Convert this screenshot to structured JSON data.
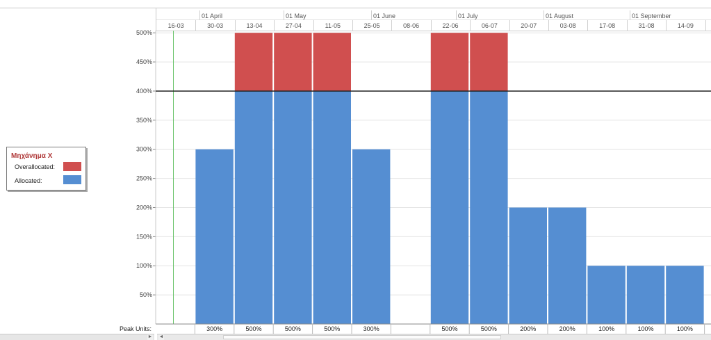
{
  "timescale": {
    "months": [
      "01 April",
      "01 May",
      "01 June",
      "01 July",
      "01 August",
      "01 September"
    ],
    "weeks": [
      "16-03",
      "30-03",
      "13-04",
      "27-04",
      "11-05",
      "25-05",
      "08-06",
      "22-06",
      "06-07",
      "20-07",
      "03-08",
      "17-08",
      "31-08",
      "14-09"
    ]
  },
  "legend": {
    "title": "Μηχάνημα X",
    "items": [
      {
        "label": "Overallocated:",
        "color": "#d04f4f"
      },
      {
        "label": "Allocated:",
        "color": "#558ed2"
      }
    ]
  },
  "chart_data": {
    "type": "bar",
    "categories": [
      "16-03",
      "30-03",
      "13-04",
      "27-04",
      "11-05",
      "25-05",
      "08-06",
      "22-06",
      "06-07",
      "20-07",
      "03-08",
      "17-08",
      "31-08",
      "14-09"
    ],
    "series": [
      {
        "name": "Allocated:",
        "color": "#558ed2",
        "values": [
          0,
          300,
          400,
          400,
          400,
          300,
          0,
          400,
          400,
          200,
          200,
          100,
          100,
          100
        ]
      },
      {
        "name": "Overallocated:",
        "color": "#d04f4f",
        "values": [
          0,
          0,
          100,
          100,
          100,
          0,
          0,
          100,
          100,
          0,
          0,
          0,
          0,
          0
        ]
      }
    ],
    "yticks": [
      "50%",
      "100%",
      "150%",
      "200%",
      "250%",
      "300%",
      "350%",
      "400%",
      "450%",
      "500%"
    ],
    "ylim": [
      0,
      500
    ],
    "max_units": 400,
    "peak_units_label": "Peak Units:",
    "peak_units": [
      "",
      "300%",
      "500%",
      "500%",
      "500%",
      "300%",
      "",
      "500%",
      "500%",
      "200%",
      "200%",
      "100%",
      "100%",
      "100%"
    ]
  }
}
